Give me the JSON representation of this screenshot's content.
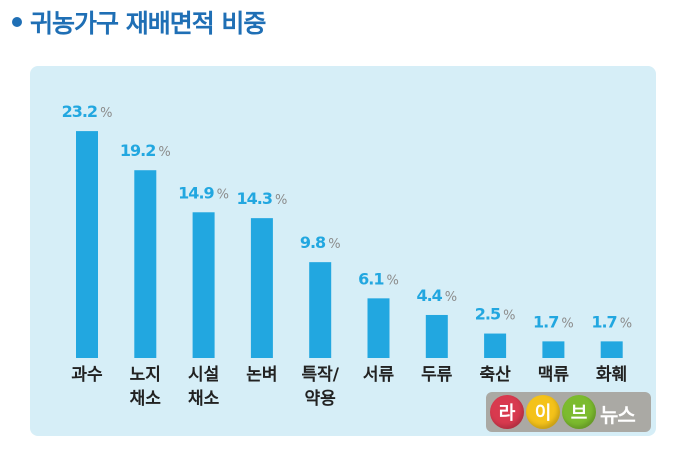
{
  "header": {
    "title": "귀농가구 재배면적 비중"
  },
  "logo": {
    "letters": [
      {
        "text": "라",
        "color": "#d83a4f"
      },
      {
        "text": "이",
        "color": "#f4c21a"
      },
      {
        "text": "브",
        "color": "#7cbb2f"
      }
    ],
    "word": "뉴스"
  },
  "chart_data": {
    "type": "bar",
    "title": "귀농가구 재배면적 비중",
    "unit": "%",
    "categories": [
      [
        "과수"
      ],
      [
        "노지",
        "채소"
      ],
      [
        "시설",
        "채소"
      ],
      [
        "논벼"
      ],
      [
        "특작/",
        "약용"
      ],
      [
        "서류"
      ],
      [
        "두류"
      ],
      [
        "축산"
      ],
      [
        "맥류"
      ],
      [
        "화훼"
      ]
    ],
    "values": [
      23.2,
      19.2,
      14.9,
      14.3,
      9.8,
      6.1,
      4.4,
      2.5,
      1.7,
      1.7
    ],
    "ylim": [
      0,
      25
    ],
    "bar_color": "#22a7e0",
    "label_color": "#22a7e0",
    "unit_color": "#8c8c8c"
  }
}
